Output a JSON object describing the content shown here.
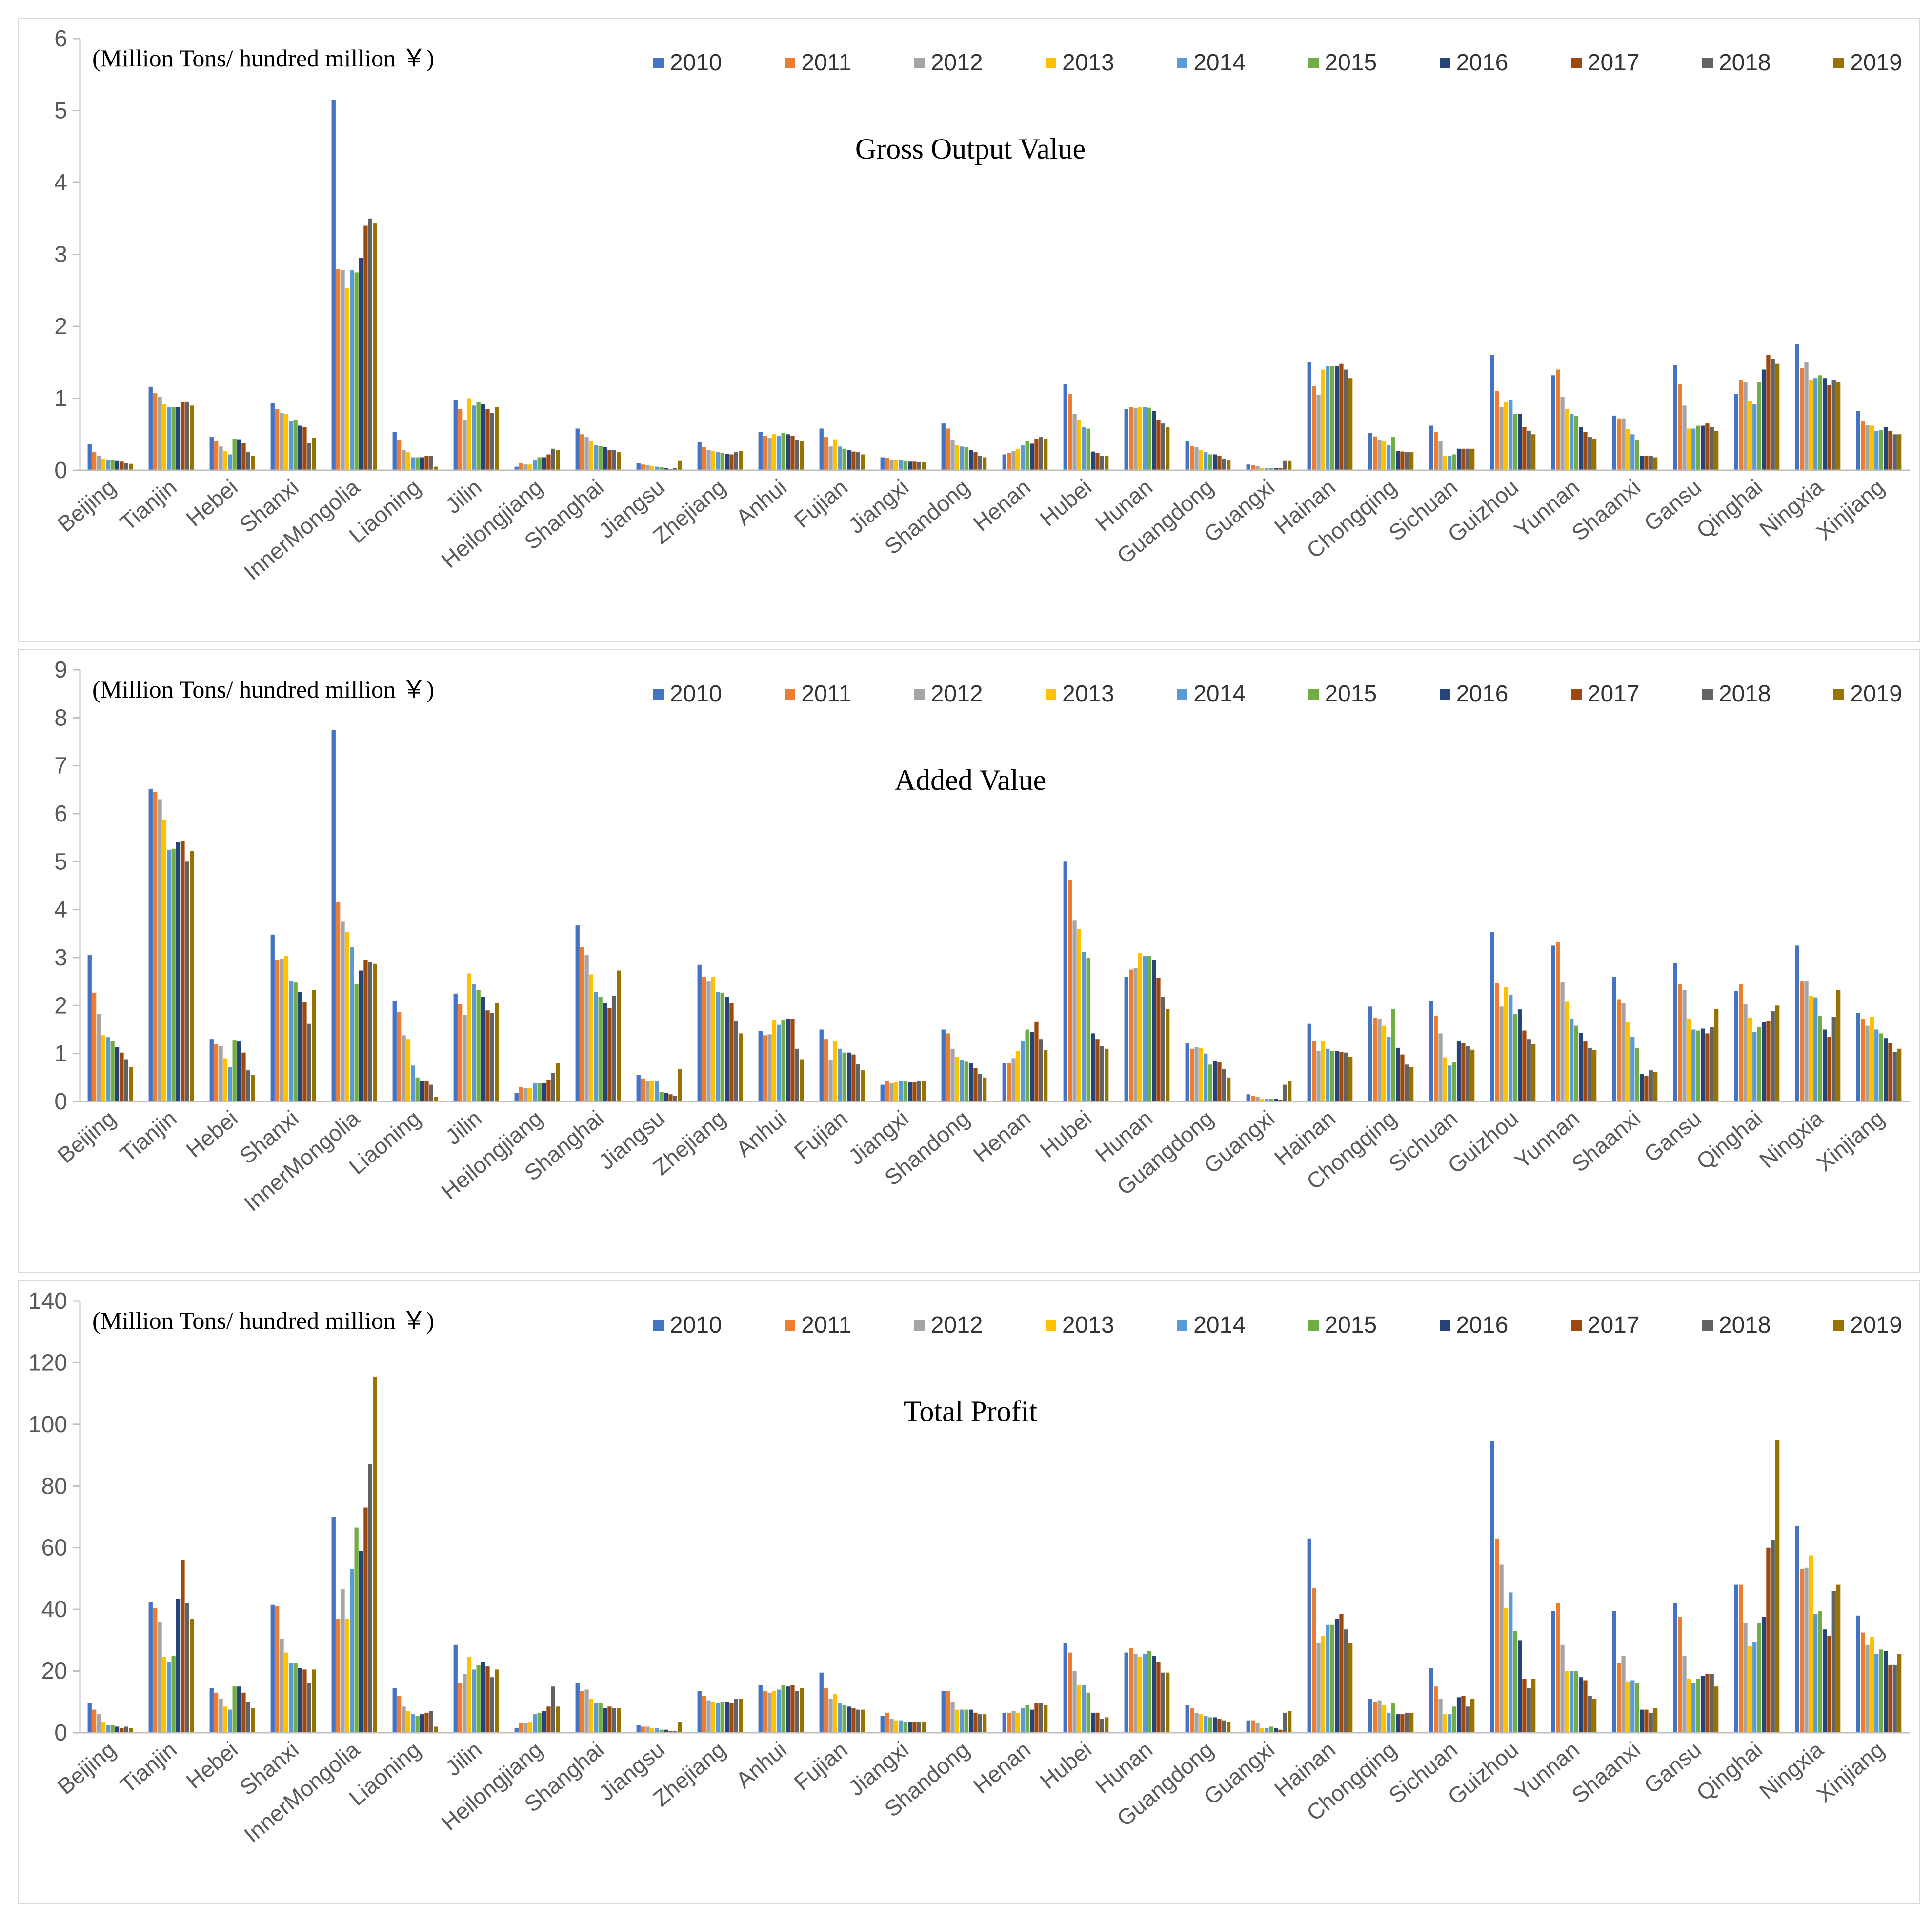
{
  "years": [
    "2010",
    "2011",
    "2012",
    "2013",
    "2014",
    "2015",
    "2016",
    "2017",
    "2018",
    "2019"
  ],
  "colors": [
    "#4472c4",
    "#ed7d31",
    "#a5a5a5",
    "#ffc000",
    "#5b9bd5",
    "#70ad47",
    "#264478",
    "#9e480e",
    "#636363",
    "#997300"
  ],
  "unit_note": "(Million Tons/ hundred million ￥)",
  "chart_data": [
    {
      "type": "bar",
      "title": "Gross Output Value",
      "ylim": [
        0,
        6
      ],
      "yticks": [
        0,
        1,
        2,
        3,
        4,
        5,
        6
      ],
      "xlabel": "",
      "ylabel": "",
      "legend": "top",
      "categories": [
        "Beijing",
        "Tianjin",
        "Hebei",
        "Shanxi",
        "InnerMongolia",
        "Liaoning",
        "Jilin",
        "Heilongjiang",
        "Shanghai",
        "Jiangsu",
        "Zhejiang",
        "Anhui",
        "Fujian",
        "Jiangxi",
        "Shandong",
        "Henan",
        "Hubei",
        "Hunan",
        "Guangdong",
        "Guangxi",
        "Hainan",
        "Chongqing",
        "Sichuan",
        "Guizhou",
        "Yunnan",
        "Shaanxi",
        "Gansu",
        "Qinghai",
        "Ningxia",
        "Xinjiang"
      ],
      "values": [
        [
          0.36,
          0.25,
          0.2,
          0.16,
          0.14,
          0.14,
          0.13,
          0.12,
          0.1,
          0.09
        ],
        [
          1.16,
          1.07,
          1.02,
          0.92,
          0.88,
          0.88,
          0.88,
          0.95,
          0.95,
          0.9
        ],
        [
          0.46,
          0.4,
          0.33,
          0.27,
          0.22,
          0.44,
          0.43,
          0.38,
          0.25,
          0.2
        ],
        [
          0.93,
          0.85,
          0.8,
          0.78,
          0.68,
          0.7,
          0.62,
          0.6,
          0.38,
          0.45
        ],
        [
          5.15,
          2.8,
          2.78,
          2.53,
          2.78,
          2.75,
          2.95,
          3.4,
          3.5,
          3.43
        ],
        [
          0.53,
          0.42,
          0.28,
          0.25,
          0.18,
          0.18,
          0.18,
          0.2,
          0.2,
          0.05
        ],
        [
          0.97,
          0.85,
          0.7,
          1.0,
          0.9,
          0.95,
          0.92,
          0.85,
          0.8,
          0.88
        ],
        [
          0.05,
          0.1,
          0.08,
          0.08,
          0.15,
          0.18,
          0.18,
          0.22,
          0.3,
          0.28
        ],
        [
          0.58,
          0.5,
          0.46,
          0.4,
          0.35,
          0.34,
          0.32,
          0.28,
          0.28,
          0.25
        ],
        [
          0.1,
          0.08,
          0.07,
          0.06,
          0.05,
          0.04,
          0.03,
          0.02,
          0.03,
          0.13
        ],
        [
          0.39,
          0.32,
          0.28,
          0.27,
          0.25,
          0.24,
          0.23,
          0.22,
          0.25,
          0.27
        ],
        [
          0.53,
          0.48,
          0.45,
          0.5,
          0.48,
          0.52,
          0.5,
          0.48,
          0.42,
          0.4
        ],
        [
          0.58,
          0.46,
          0.33,
          0.43,
          0.33,
          0.3,
          0.28,
          0.26,
          0.25,
          0.22
        ],
        [
          0.18,
          0.17,
          0.14,
          0.14,
          0.14,
          0.13,
          0.12,
          0.12,
          0.11,
          0.11
        ],
        [
          0.65,
          0.58,
          0.42,
          0.35,
          0.33,
          0.32,
          0.28,
          0.25,
          0.2,
          0.18
        ],
        [
          0.22,
          0.24,
          0.27,
          0.3,
          0.35,
          0.4,
          0.37,
          0.44,
          0.46,
          0.44
        ],
        [
          1.2,
          1.06,
          0.78,
          0.7,
          0.6,
          0.58,
          0.26,
          0.24,
          0.2,
          0.2
        ],
        [
          0.85,
          0.88,
          0.86,
          0.88,
          0.88,
          0.87,
          0.82,
          0.7,
          0.65,
          0.6
        ],
        [
          0.4,
          0.34,
          0.32,
          0.28,
          0.25,
          0.22,
          0.22,
          0.2,
          0.16,
          0.14
        ],
        [
          0.08,
          0.07,
          0.06,
          0.03,
          0.03,
          0.03,
          0.03,
          0.03,
          0.13,
          0.13
        ],
        [
          1.5,
          1.17,
          1.05,
          1.4,
          1.45,
          1.45,
          1.45,
          1.48,
          1.4,
          1.28
        ],
        [
          0.52,
          0.47,
          0.42,
          0.4,
          0.35,
          0.46,
          0.27,
          0.26,
          0.25,
          0.25
        ],
        [
          0.62,
          0.53,
          0.4,
          0.2,
          0.2,
          0.22,
          0.3,
          0.3,
          0.3,
          0.3
        ],
        [
          1.6,
          1.1,
          0.88,
          0.95,
          0.98,
          0.78,
          0.78,
          0.6,
          0.55,
          0.5
        ],
        [
          1.32,
          1.4,
          1.02,
          0.85,
          0.78,
          0.76,
          0.6,
          0.53,
          0.46,
          0.44
        ],
        [
          0.76,
          0.72,
          0.72,
          0.57,
          0.5,
          0.42,
          0.2,
          0.2,
          0.2,
          0.18
        ],
        [
          1.46,
          1.2,
          0.9,
          0.58,
          0.58,
          0.62,
          0.62,
          0.65,
          0.6,
          0.55
        ],
        [
          1.06,
          1.25,
          1.22,
          0.96,
          0.92,
          1.22,
          1.4,
          1.6,
          1.55,
          1.48
        ],
        [
          1.75,
          1.42,
          1.5,
          1.25,
          1.28,
          1.32,
          1.28,
          1.18,
          1.25,
          1.22
        ],
        [
          0.82,
          0.68,
          0.63,
          0.62,
          0.55,
          0.56,
          0.6,
          0.55,
          0.5,
          0.5
        ]
      ]
    },
    {
      "type": "bar",
      "title": "Added Value",
      "ylim": [
        0,
        9
      ],
      "yticks": [
        0,
        1,
        2,
        3,
        4,
        5,
        6,
        7,
        8,
        9
      ],
      "xlabel": "",
      "ylabel": "",
      "legend": "top",
      "categories": [
        "Beijing",
        "Tianjin",
        "Hebei",
        "Shanxi",
        "InnerMongolia",
        "Liaoning",
        "Jilin",
        "Heilongjiang",
        "Shanghai",
        "Jiangsu",
        "Zhejiang",
        "Anhui",
        "Fujian",
        "Jiangxi",
        "Shandong",
        "Henan",
        "Hubei",
        "Hunan",
        "Guangdong",
        "Guangxi",
        "Hainan",
        "Chongqing",
        "Sichuan",
        "Guizhou",
        "Yunnan",
        "Shaanxi",
        "Gansu",
        "Qinghai",
        "Ningxia",
        "Xinjiang"
      ],
      "values": [
        [
          3.05,
          2.27,
          1.83,
          1.38,
          1.34,
          1.27,
          1.13,
          1.02,
          0.88,
          0.72
        ],
        [
          6.52,
          6.45,
          6.3,
          5.88,
          5.25,
          5.27,
          5.4,
          5.42,
          5.0,
          5.22
        ],
        [
          1.3,
          1.2,
          1.15,
          0.9,
          0.72,
          1.28,
          1.25,
          1.02,
          0.65,
          0.55
        ],
        [
          3.48,
          2.95,
          2.98,
          3.03,
          2.52,
          2.48,
          2.28,
          2.07,
          1.62,
          2.32
        ],
        [
          7.75,
          4.16,
          3.75,
          3.53,
          3.22,
          2.45,
          2.73,
          2.95,
          2.9,
          2.87
        ],
        [
          2.1,
          1.87,
          1.38,
          1.3,
          0.75,
          0.5,
          0.42,
          0.42,
          0.35,
          0.1
        ],
        [
          2.25,
          2.03,
          1.8,
          2.67,
          2.45,
          2.32,
          2.18,
          1.9,
          1.85,
          2.05
        ],
        [
          0.18,
          0.3,
          0.28,
          0.28,
          0.38,
          0.38,
          0.38,
          0.45,
          0.6,
          0.8
        ],
        [
          3.67,
          3.22,
          3.05,
          2.65,
          2.28,
          2.18,
          2.05,
          1.95,
          2.2,
          2.73
        ],
        [
          0.55,
          0.48,
          0.42,
          0.42,
          0.42,
          0.2,
          0.18,
          0.15,
          0.12,
          0.68
        ],
        [
          2.85,
          2.6,
          2.5,
          2.6,
          2.28,
          2.27,
          2.18,
          2.05,
          1.68,
          1.42
        ],
        [
          1.47,
          1.38,
          1.4,
          1.7,
          1.6,
          1.7,
          1.72,
          1.72,
          1.1,
          0.88
        ],
        [
          1.5,
          1.3,
          0.87,
          1.25,
          1.1,
          1.02,
          1.02,
          0.98,
          0.78,
          0.65
        ],
        [
          0.35,
          0.42,
          0.38,
          0.4,
          0.43,
          0.42,
          0.4,
          0.4,
          0.42,
          0.42
        ],
        [
          1.5,
          1.42,
          1.1,
          0.93,
          0.87,
          0.83,
          0.8,
          0.7,
          0.58,
          0.5
        ],
        [
          0.8,
          0.8,
          0.9,
          1.05,
          1.27,
          1.5,
          1.45,
          1.66,
          1.3,
          1.07
        ],
        [
          5.0,
          4.62,
          3.78,
          3.6,
          3.12,
          3.0,
          1.42,
          1.3,
          1.15,
          1.1
        ],
        [
          2.6,
          2.75,
          2.78,
          3.1,
          3.03,
          3.03,
          2.95,
          2.58,
          2.18,
          1.93
        ],
        [
          1.22,
          1.1,
          1.13,
          1.12,
          1.0,
          0.77,
          0.85,
          0.82,
          0.68,
          0.5
        ],
        [
          0.15,
          0.12,
          0.1,
          0.05,
          0.05,
          0.06,
          0.06,
          0.04,
          0.35,
          0.43
        ],
        [
          1.62,
          1.27,
          1.05,
          1.25,
          1.1,
          1.05,
          1.05,
          1.03,
          1.02,
          0.93
        ],
        [
          1.98,
          1.75,
          1.72,
          1.58,
          1.35,
          1.93,
          1.12,
          0.98,
          0.77,
          0.72
        ],
        [
          2.1,
          1.78,
          1.42,
          0.92,
          0.75,
          0.82,
          1.25,
          1.22,
          1.15,
          1.08
        ],
        [
          3.53,
          2.47,
          1.98,
          2.38,
          2.22,
          1.83,
          1.92,
          1.48,
          1.3,
          1.2
        ],
        [
          3.25,
          3.32,
          2.48,
          2.08,
          1.73,
          1.58,
          1.43,
          1.25,
          1.12,
          1.07
        ],
        [
          2.6,
          2.13,
          2.05,
          1.65,
          1.35,
          1.12,
          0.58,
          0.53,
          0.65,
          0.62
        ],
        [
          2.88,
          2.45,
          2.32,
          1.72,
          1.5,
          1.48,
          1.52,
          1.42,
          1.55,
          1.93
        ],
        [
          2.3,
          2.45,
          2.03,
          1.75,
          1.45,
          1.55,
          1.65,
          1.68,
          1.88,
          2.0
        ],
        [
          3.25,
          2.5,
          2.52,
          2.2,
          2.17,
          1.78,
          1.5,
          1.35,
          1.77,
          2.32
        ],
        [
          1.85,
          1.72,
          1.58,
          1.77,
          1.5,
          1.42,
          1.32,
          1.22,
          1.03,
          1.1
        ]
      ]
    },
    {
      "type": "bar",
      "title": "Total Profit",
      "ylim": [
        0,
        140
      ],
      "yticks": [
        0,
        20,
        40,
        60,
        80,
        100,
        120,
        140
      ],
      "xlabel": "",
      "ylabel": "",
      "legend": "top",
      "categories": [
        "Beijing",
        "Tianjin",
        "Hebei",
        "Shanxi",
        "InnerMongolia",
        "Liaoning",
        "Jilin",
        "Heilongjiang",
        "Shanghai",
        "Jiangsu",
        "Zhejiang",
        "Anhui",
        "Fujian",
        "Jiangxi",
        "Shandong",
        "Henan",
        "Hubei",
        "Hunan",
        "Guangdong",
        "Guangxi",
        "Hainan",
        "Chongqing",
        "Sichuan",
        "Guizhou",
        "Yunnan",
        "Shaanxi",
        "Gansu",
        "Qinghai",
        "Ningxia",
        "Xinjiang"
      ],
      "values": [
        [
          9.5,
          7.5,
          6.0,
          3.5,
          2.5,
          2.5,
          2.0,
          1.5,
          2.0,
          1.5
        ],
        [
          42.5,
          40.5,
          36.0,
          24.5,
          23.0,
          25.0,
          43.5,
          56.0,
          42.0,
          37.0
        ],
        [
          14.5,
          13.0,
          11.0,
          8.5,
          7.5,
          15.0,
          15.0,
          13.0,
          10.0,
          8.0
        ],
        [
          41.5,
          41.0,
          30.5,
          26.0,
          22.5,
          22.5,
          21.0,
          20.5,
          16.0,
          20.5
        ],
        [
          70.0,
          37.0,
          46.5,
          37.0,
          53.0,
          66.5,
          59.0,
          73.0,
          87.0,
          115.5
        ],
        [
          14.5,
          12.0,
          8.5,
          7.0,
          6.0,
          5.5,
          6.0,
          6.5,
          7.0,
          2.0
        ],
        [
          28.5,
          16.0,
          19.0,
          24.5,
          20.5,
          22.0,
          23.0,
          21.5,
          18.0,
          20.5
        ],
        [
          1.5,
          3.0,
          3.0,
          3.5,
          6.0,
          6.5,
          7.0,
          8.5,
          15.0,
          8.5
        ],
        [
          16.0,
          13.5,
          14.0,
          11.0,
          9.5,
          9.5,
          8.0,
          8.5,
          8.0,
          8.0
        ],
        [
          2.5,
          2.0,
          2.0,
          1.5,
          1.5,
          1.0,
          1.0,
          0.5,
          0.5,
          3.5
        ],
        [
          13.5,
          12.0,
          10.5,
          10.0,
          9.5,
          10.0,
          10.0,
          9.5,
          11.0,
          11.0
        ],
        [
          15.5,
          13.5,
          13.0,
          13.5,
          14.0,
          15.5,
          15.0,
          15.5,
          13.5,
          14.5
        ],
        [
          19.5,
          14.5,
          11.0,
          12.5,
          9.5,
          9.0,
          8.5,
          8.0,
          7.5,
          7.5
        ],
        [
          5.5,
          6.5,
          4.5,
          4.0,
          4.0,
          3.5,
          3.5,
          3.5,
          3.5,
          3.5
        ],
        [
          13.5,
          13.5,
          10.0,
          7.5,
          7.5,
          7.5,
          7.5,
          6.5,
          6.0,
          6.0
        ],
        [
          6.5,
          6.5,
          7.0,
          6.5,
          8.0,
          9.0,
          7.5,
          9.5,
          9.5,
          9.0
        ],
        [
          29.0,
          26.0,
          20.0,
          15.5,
          15.5,
          13.0,
          6.5,
          6.5,
          4.5,
          5.0
        ],
        [
          26.0,
          27.5,
          25.5,
          24.5,
          25.5,
          26.5,
          25.0,
          23.0,
          19.5,
          19.5
        ],
        [
          9.0,
          8.0,
          6.5,
          6.0,
          5.5,
          5.0,
          5.0,
          4.5,
          4.0,
          3.5
        ],
        [
          4.0,
          4.0,
          3.0,
          1.5,
          1.5,
          2.0,
          1.5,
          1.0,
          6.5,
          7.0
        ],
        [
          63.0,
          47.0,
          29.0,
          31.5,
          35.0,
          35.0,
          37.0,
          38.5,
          33.5,
          29.0
        ],
        [
          11.0,
          10.0,
          10.5,
          9.0,
          6.5,
          9.5,
          6.0,
          6.0,
          6.5,
          6.5
        ],
        [
          21.0,
          15.0,
          11.0,
          6.0,
          6.0,
          8.5,
          11.5,
          12.0,
          8.5,
          11.0
        ],
        [
          94.5,
          63.0,
          54.5,
          40.5,
          45.5,
          33.0,
          30.0,
          17.5,
          14.5,
          17.5
        ],
        [
          39.5,
          42.0,
          28.5,
          20.0,
          20.0,
          20.0,
          18.0,
          17.0,
          12.0,
          11.0
        ],
        [
          39.5,
          22.5,
          25.0,
          16.5,
          17.0,
          16.0,
          7.5,
          7.5,
          6.5,
          8.0
        ],
        [
          42.0,
          37.5,
          25.0,
          17.5,
          16.0,
          17.5,
          18.5,
          19.0,
          19.0,
          15.0
        ],
        [
          48.0,
          48.0,
          35.5,
          28.0,
          29.5,
          35.5,
          37.5,
          60.0,
          62.5,
          95.0
        ],
        [
          67.0,
          53.0,
          53.5,
          57.5,
          38.5,
          39.5,
          33.5,
          31.5,
          46.0,
          48.0
        ],
        [
          38.0,
          32.5,
          28.5,
          31.0,
          25.5,
          27.0,
          26.5,
          22.0,
          22.0,
          25.5
        ]
      ]
    }
  ]
}
